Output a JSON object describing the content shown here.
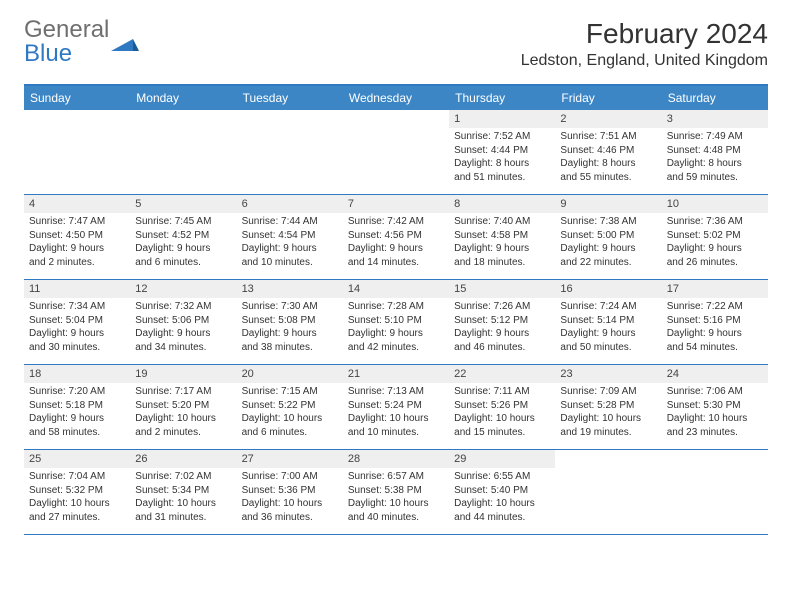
{
  "brand": {
    "general": "General",
    "blue": "Blue"
  },
  "title": "February 2024",
  "location": "Ledston, England, United Kingdom",
  "colors": {
    "header_bg": "#3d86c6",
    "header_border": "#2f78c2",
    "daynum_bg": "#efefef",
    "text": "#333333",
    "logo_gray": "#6f6f6f",
    "logo_blue": "#2f78c2",
    "page_bg": "#ffffff"
  },
  "typography": {
    "title_fontsize": 28,
    "location_fontsize": 16,
    "dayhead_fontsize": 12,
    "daynum_fontsize": 11,
    "body_fontsize": 10
  },
  "day_names": [
    "Sunday",
    "Monday",
    "Tuesday",
    "Wednesday",
    "Thursday",
    "Friday",
    "Saturday"
  ],
  "weeks": [
    [
      {
        "empty": true
      },
      {
        "empty": true
      },
      {
        "empty": true
      },
      {
        "empty": true
      },
      {
        "n": "1",
        "sunrise": "Sunrise: 7:52 AM",
        "sunset": "Sunset: 4:44 PM",
        "d1": "Daylight: 8 hours",
        "d2": "and 51 minutes."
      },
      {
        "n": "2",
        "sunrise": "Sunrise: 7:51 AM",
        "sunset": "Sunset: 4:46 PM",
        "d1": "Daylight: 8 hours",
        "d2": "and 55 minutes."
      },
      {
        "n": "3",
        "sunrise": "Sunrise: 7:49 AM",
        "sunset": "Sunset: 4:48 PM",
        "d1": "Daylight: 8 hours",
        "d2": "and 59 minutes."
      }
    ],
    [
      {
        "n": "4",
        "sunrise": "Sunrise: 7:47 AM",
        "sunset": "Sunset: 4:50 PM",
        "d1": "Daylight: 9 hours",
        "d2": "and 2 minutes."
      },
      {
        "n": "5",
        "sunrise": "Sunrise: 7:45 AM",
        "sunset": "Sunset: 4:52 PM",
        "d1": "Daylight: 9 hours",
        "d2": "and 6 minutes."
      },
      {
        "n": "6",
        "sunrise": "Sunrise: 7:44 AM",
        "sunset": "Sunset: 4:54 PM",
        "d1": "Daylight: 9 hours",
        "d2": "and 10 minutes."
      },
      {
        "n": "7",
        "sunrise": "Sunrise: 7:42 AM",
        "sunset": "Sunset: 4:56 PM",
        "d1": "Daylight: 9 hours",
        "d2": "and 14 minutes."
      },
      {
        "n": "8",
        "sunrise": "Sunrise: 7:40 AM",
        "sunset": "Sunset: 4:58 PM",
        "d1": "Daylight: 9 hours",
        "d2": "and 18 minutes."
      },
      {
        "n": "9",
        "sunrise": "Sunrise: 7:38 AM",
        "sunset": "Sunset: 5:00 PM",
        "d1": "Daylight: 9 hours",
        "d2": "and 22 minutes."
      },
      {
        "n": "10",
        "sunrise": "Sunrise: 7:36 AM",
        "sunset": "Sunset: 5:02 PM",
        "d1": "Daylight: 9 hours",
        "d2": "and 26 minutes."
      }
    ],
    [
      {
        "n": "11",
        "sunrise": "Sunrise: 7:34 AM",
        "sunset": "Sunset: 5:04 PM",
        "d1": "Daylight: 9 hours",
        "d2": "and 30 minutes."
      },
      {
        "n": "12",
        "sunrise": "Sunrise: 7:32 AM",
        "sunset": "Sunset: 5:06 PM",
        "d1": "Daylight: 9 hours",
        "d2": "and 34 minutes."
      },
      {
        "n": "13",
        "sunrise": "Sunrise: 7:30 AM",
        "sunset": "Sunset: 5:08 PM",
        "d1": "Daylight: 9 hours",
        "d2": "and 38 minutes."
      },
      {
        "n": "14",
        "sunrise": "Sunrise: 7:28 AM",
        "sunset": "Sunset: 5:10 PM",
        "d1": "Daylight: 9 hours",
        "d2": "and 42 minutes."
      },
      {
        "n": "15",
        "sunrise": "Sunrise: 7:26 AM",
        "sunset": "Sunset: 5:12 PM",
        "d1": "Daylight: 9 hours",
        "d2": "and 46 minutes."
      },
      {
        "n": "16",
        "sunrise": "Sunrise: 7:24 AM",
        "sunset": "Sunset: 5:14 PM",
        "d1": "Daylight: 9 hours",
        "d2": "and 50 minutes."
      },
      {
        "n": "17",
        "sunrise": "Sunrise: 7:22 AM",
        "sunset": "Sunset: 5:16 PM",
        "d1": "Daylight: 9 hours",
        "d2": "and 54 minutes."
      }
    ],
    [
      {
        "n": "18",
        "sunrise": "Sunrise: 7:20 AM",
        "sunset": "Sunset: 5:18 PM",
        "d1": "Daylight: 9 hours",
        "d2": "and 58 minutes."
      },
      {
        "n": "19",
        "sunrise": "Sunrise: 7:17 AM",
        "sunset": "Sunset: 5:20 PM",
        "d1": "Daylight: 10 hours",
        "d2": "and 2 minutes."
      },
      {
        "n": "20",
        "sunrise": "Sunrise: 7:15 AM",
        "sunset": "Sunset: 5:22 PM",
        "d1": "Daylight: 10 hours",
        "d2": "and 6 minutes."
      },
      {
        "n": "21",
        "sunrise": "Sunrise: 7:13 AM",
        "sunset": "Sunset: 5:24 PM",
        "d1": "Daylight: 10 hours",
        "d2": "and 10 minutes."
      },
      {
        "n": "22",
        "sunrise": "Sunrise: 7:11 AM",
        "sunset": "Sunset: 5:26 PM",
        "d1": "Daylight: 10 hours",
        "d2": "and 15 minutes."
      },
      {
        "n": "23",
        "sunrise": "Sunrise: 7:09 AM",
        "sunset": "Sunset: 5:28 PM",
        "d1": "Daylight: 10 hours",
        "d2": "and 19 minutes."
      },
      {
        "n": "24",
        "sunrise": "Sunrise: 7:06 AM",
        "sunset": "Sunset: 5:30 PM",
        "d1": "Daylight: 10 hours",
        "d2": "and 23 minutes."
      }
    ],
    [
      {
        "n": "25",
        "sunrise": "Sunrise: 7:04 AM",
        "sunset": "Sunset: 5:32 PM",
        "d1": "Daylight: 10 hours",
        "d2": "and 27 minutes."
      },
      {
        "n": "26",
        "sunrise": "Sunrise: 7:02 AM",
        "sunset": "Sunset: 5:34 PM",
        "d1": "Daylight: 10 hours",
        "d2": "and 31 minutes."
      },
      {
        "n": "27",
        "sunrise": "Sunrise: 7:00 AM",
        "sunset": "Sunset: 5:36 PM",
        "d1": "Daylight: 10 hours",
        "d2": "and 36 minutes."
      },
      {
        "n": "28",
        "sunrise": "Sunrise: 6:57 AM",
        "sunset": "Sunset: 5:38 PM",
        "d1": "Daylight: 10 hours",
        "d2": "and 40 minutes."
      },
      {
        "n": "29",
        "sunrise": "Sunrise: 6:55 AM",
        "sunset": "Sunset: 5:40 PM",
        "d1": "Daylight: 10 hours",
        "d2": "and 44 minutes."
      },
      {
        "empty": true
      },
      {
        "empty": true
      }
    ]
  ]
}
